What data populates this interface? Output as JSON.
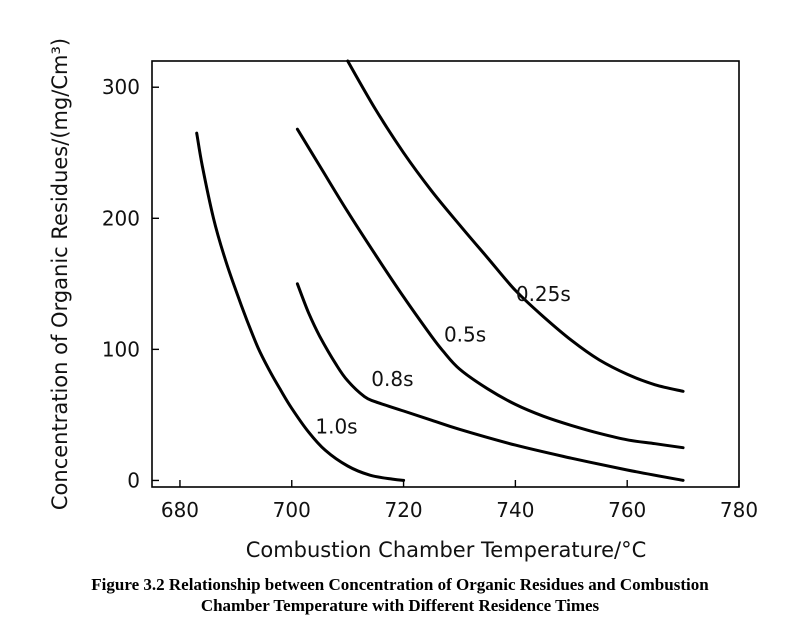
{
  "chart_data": {
    "type": "line",
    "xlabel": "Combustion Chamber Temperature/°C",
    "ylabel": "Concentration of Organic Residues/(mg/Cm³)",
    "xlim": [
      675,
      780
    ],
    "ylim": [
      -5,
      320
    ],
    "x_ticks": [
      680,
      700,
      720,
      740,
      760,
      780
    ],
    "y_ticks": [
      0,
      100,
      200,
      300
    ],
    "grid": false,
    "legend": "none",
    "series": [
      {
        "name": "0.25s",
        "x": [
          710,
          715,
          720,
          725,
          730,
          735,
          740,
          745,
          750,
          755,
          760,
          765,
          770
        ],
        "y": [
          320,
          283,
          250,
          221,
          195,
          170,
          145,
          125,
          107,
          92,
          81,
          73,
          68
        ]
      },
      {
        "name": "0.5s",
        "x": [
          701,
          705,
          710,
          715,
          720,
          725,
          727,
          730,
          735,
          740,
          745,
          750,
          755,
          760,
          765,
          770
        ],
        "y": [
          268,
          240,
          205,
          172,
          140,
          110,
          99,
          85,
          70,
          58,
          49,
          42,
          36,
          31,
          28,
          25
        ]
      },
      {
        "name": "0.8s",
        "x": [
          701,
          703,
          705,
          708,
          710,
          713,
          715,
          720,
          725,
          730,
          740,
          750,
          760,
          770
        ],
        "y": [
          150,
          128,
          110,
          88,
          76,
          64,
          60,
          53,
          46,
          39,
          27,
          17,
          8,
          0
        ]
      },
      {
        "name": "1.0s",
        "x": [
          683,
          684,
          686,
          688,
          690,
          692,
          694,
          696,
          698,
          700,
          703,
          706,
          710,
          714,
          718,
          720
        ],
        "y": [
          265,
          240,
          200,
          170,
          145,
          122,
          101,
          84,
          69,
          55,
          37,
          23,
          11,
          4,
          1,
          0
        ]
      }
    ],
    "annotations": [
      {
        "text": "0.25s",
        "x": 745,
        "y": 137
      },
      {
        "text": "0.5s",
        "x": 731,
        "y": 106
      },
      {
        "text": "0.8s",
        "x": 718,
        "y": 72
      },
      {
        "text": "1.0s",
        "x": 708,
        "y": 36
      }
    ]
  },
  "caption": {
    "line1": "Figure 3.2 Relationship between Concentration of Organic Residues and Combustion",
    "line2": "Chamber Temperature with Different Residence Times"
  }
}
